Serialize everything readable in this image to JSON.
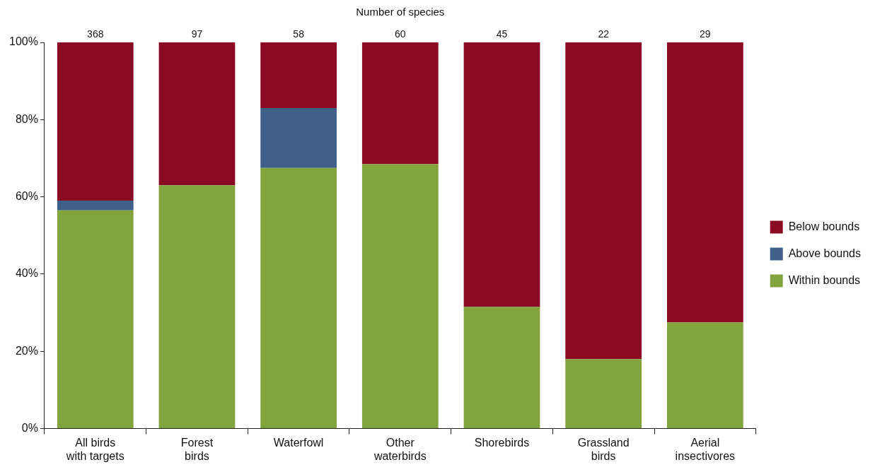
{
  "chart_data": {
    "type": "bar",
    "stacked": true,
    "categories": [
      "All birds with targets",
      "Forest birds",
      "Waterfowl",
      "Other waterbirds",
      "Shorebirds",
      "Grassland birds",
      "Aerial insectivores"
    ],
    "series": [
      {
        "name": "Within bounds",
        "color": "#82a43e",
        "values": [
          56.5,
          63,
          67.5,
          68.5,
          31.5,
          18,
          27.5
        ]
      },
      {
        "name": "Above bounds",
        "color": "#3f6089",
        "values": [
          2.5,
          0,
          15.5,
          0,
          0,
          0,
          0
        ]
      },
      {
        "name": "Below bounds",
        "color": "#8b0a23",
        "values": [
          41,
          37,
          17,
          31.5,
          68.5,
          82,
          72.5
        ]
      }
    ],
    "ylim": [
      0,
      100
    ],
    "yticks": [
      {
        "value": 0,
        "label": "0%"
      },
      {
        "value": 20,
        "label": "20%"
      },
      {
        "value": 40,
        "label": "40%"
      },
      {
        "value": 60,
        "label": "60%"
      },
      {
        "value": 80,
        "label": "80%"
      },
      {
        "value": 100,
        "label": "100%"
      }
    ],
    "grid": false,
    "legend": "right",
    "annotations": [
      "Number of species",
      {
        "text": "368",
        "x": "All birds with targets",
        "y": 100
      },
      {
        "text": "97",
        "x": "Forest birds",
        "y": 100
      },
      {
        "text": "58",
        "x": "Waterfowl",
        "y": 100
      },
      {
        "text": "60",
        "x": "Other waterbirds",
        "y": 100
      },
      {
        "text": "45",
        "x": "Shorebirds",
        "y": 100
      },
      {
        "text": "22",
        "x": "Grassland birds",
        "y": 100
      },
      {
        "text": "29",
        "x": "Aerial insectivores",
        "y": 100
      }
    ]
  }
}
